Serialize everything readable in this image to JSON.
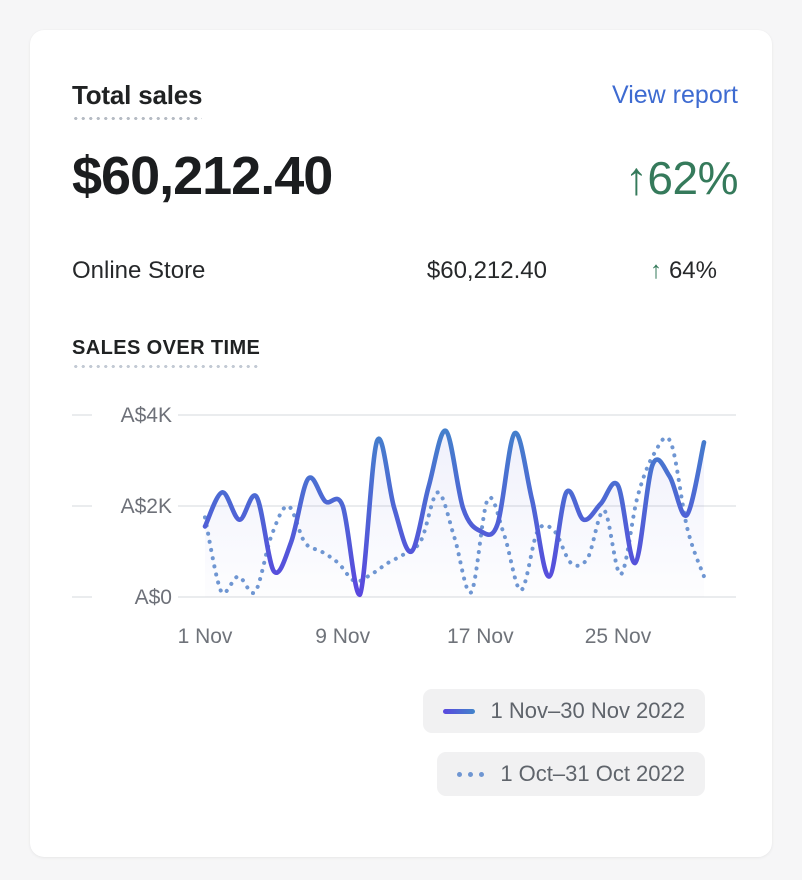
{
  "card": {
    "title": "Total sales",
    "view_report_label": "View report",
    "total_value": "$60,212.40",
    "total_change_arrow": "↑",
    "total_change_value": "62%",
    "breakdown": [
      {
        "channel": "Online Store",
        "value": "$60,212.40",
        "arrow": "↑",
        "change": "64%"
      }
    ],
    "section_title": "SALES OVER TIME"
  },
  "colors": {
    "page_bg": "#f6f6f7",
    "card_bg": "#ffffff",
    "link_blue": "#3e6bd1",
    "positive_green": "#357a5b",
    "gridline": "#e4e5e8",
    "axis_text": "#6e7179",
    "legend_bg": "#f1f1f2",
    "legend_text": "#5f646b"
  },
  "chart_data": {
    "type": "line",
    "title": "SALES OVER TIME",
    "currency": "AUD",
    "grid": true,
    "legend_position": "bottom-right",
    "y_axis": {
      "range": [
        0,
        4000
      ],
      "ticks": [
        {
          "label": "A$4K",
          "value": 4000
        },
        {
          "label": "A$2K",
          "value": 2000
        },
        {
          "label": "A$0",
          "value": 0
        }
      ]
    },
    "x_axis": {
      "ticks": [
        {
          "label": "1 Nov",
          "day": 1
        },
        {
          "label": "9 Nov",
          "day": 9
        },
        {
          "label": "17 Nov",
          "day": 17
        },
        {
          "label": "25 Nov",
          "day": 25
        }
      ]
    },
    "series": [
      {
        "name": "1 Nov–30 Nov 2022",
        "style": "solid",
        "color_top": "#4285ca",
        "color_bottom": "#5a47df",
        "fill_top": "rgba(95,103,215,0.10)",
        "fill_bottom": "rgba(95,103,215,0.01)",
        "values": [
          1550,
          2300,
          1700,
          2200,
          570,
          1200,
          2600,
          2100,
          2000,
          50,
          3430,
          1950,
          1000,
          2430,
          3650,
          1950,
          1450,
          1600,
          3600,
          2150,
          450,
          2300,
          1700,
          2050,
          2450,
          750,
          2900,
          2650,
          1800,
          3400
        ]
      },
      {
        "name": "1 Oct–31 Oct 2022",
        "style": "dotted",
        "color": "#6f96d2",
        "values": [
          1750,
          100,
          450,
          100,
          1350,
          2000,
          1200,
          1000,
          750,
          350,
          500,
          750,
          950,
          1250,
          2300,
          1300,
          100,
          2150,
          1350,
          150,
          1450,
          1450,
          750,
          850,
          1900,
          500,
          2200,
          3150,
          3400,
          1500,
          450
        ]
      }
    ]
  }
}
